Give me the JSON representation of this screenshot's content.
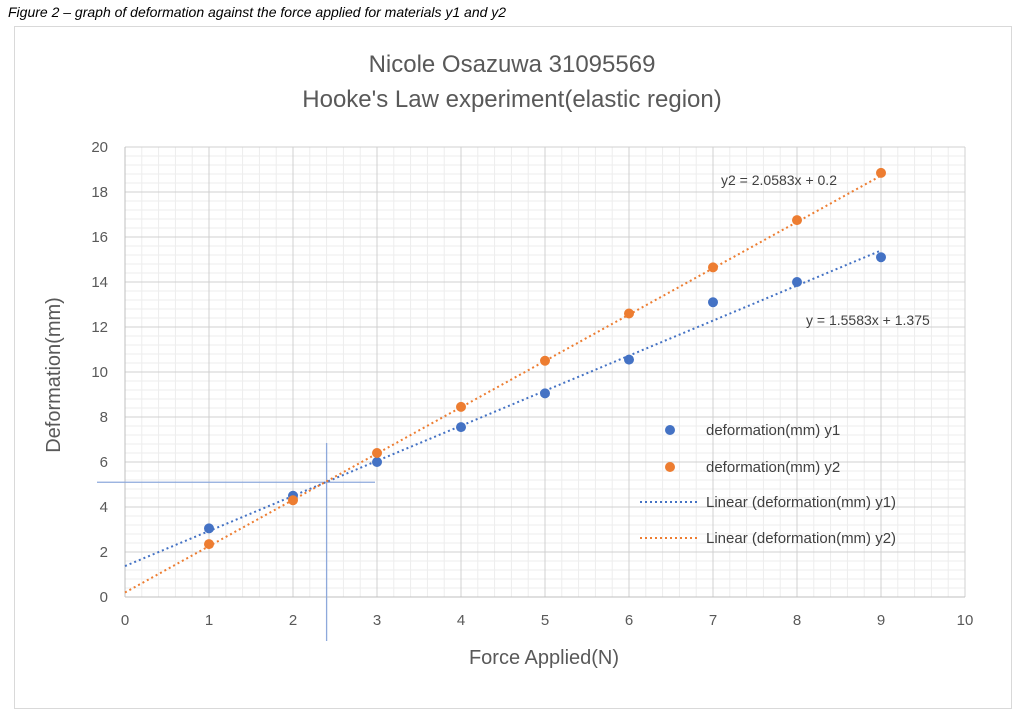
{
  "caption": "Figure 2 – graph of deformation against the force applied for materials y1 and y2",
  "chart_data": {
    "type": "scatter",
    "title": [
      "Nicole Osazuwa 31095569",
      "Hooke's Law experiment(elastic region)"
    ],
    "xlabel": "Force Applied(N)",
    "ylabel": "Deformation(mm)",
    "xlim": [
      0,
      10
    ],
    "ylim": [
      0,
      20
    ],
    "x_ticks": [
      0,
      1,
      2,
      3,
      4,
      5,
      6,
      7,
      8,
      9,
      10
    ],
    "y_ticks": [
      0,
      2,
      4,
      6,
      8,
      10,
      12,
      14,
      16,
      18,
      20
    ],
    "grid": true,
    "series": [
      {
        "name": "deformation(mm) y1",
        "color": "#4472c4",
        "x": [
          1,
          2,
          3,
          4,
          5,
          6,
          7,
          8,
          9
        ],
        "y": [
          3.05,
          4.5,
          6.0,
          7.55,
          9.05,
          10.55,
          13.1,
          14.0,
          15.1
        ]
      },
      {
        "name": "deformation(mm) y2",
        "color": "#ed7d31",
        "x": [
          1,
          2,
          3,
          4,
          5,
          6,
          7,
          8,
          9
        ],
        "y": [
          2.35,
          4.3,
          6.4,
          8.45,
          10.5,
          12.6,
          14.65,
          16.75,
          18.85
        ]
      }
    ],
    "trendlines": [
      {
        "name": "Linear (deformation(mm) y1)",
        "color": "#4472c4",
        "slope": 1.5583,
        "intercept": 1.375,
        "equation": "y = 1.5583x + 1.375"
      },
      {
        "name": "Linear (deformation(mm) y2)",
        "color": "#ed7d31",
        "slope": 2.0583,
        "intercept": 0.2,
        "equation": "y2 = 2.0583x + 0.2"
      }
    ],
    "annotations": {
      "intersection_vertical_x": 2.4,
      "intersection_horizontal_y": 5.1
    },
    "legend_position": "right"
  }
}
